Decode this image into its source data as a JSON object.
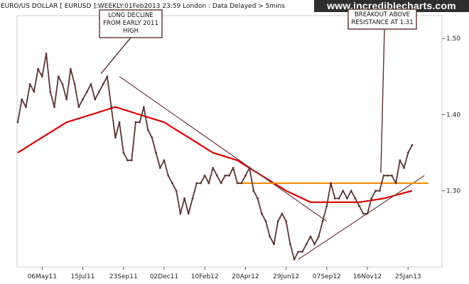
{
  "header": {
    "title": "EURO/US DOLLAR [ EURUSD ]:WEEKLY:01Feb2013 23:59 London : Data Delayed > 5mins",
    "site": "www.incrediblecharts.com"
  },
  "colors": {
    "price": "#5b3330",
    "moving_average": "#dd0000",
    "resistance": "#f08a00",
    "trendline": "#6a3a38",
    "annotation_border": "#5b3330",
    "header_bg": "#2e2e2e",
    "grid": "#e6e6e6"
  },
  "chart_data": {
    "type": "line",
    "title": "EURO/US DOLLAR [ EURUSD ]:WEEKLY:01Feb2013 23:59 London : Data Delayed > 5mins",
    "xlabel": "",
    "ylabel": "",
    "x_range": [
      "2011-03-25",
      "2013-02-01"
    ],
    "ylim": [
      1.2,
      1.53
    ],
    "grid": false,
    "x_ticks": [
      "06May11",
      "15Jul11",
      "23Sep11",
      "02Dec11",
      "10Feb12",
      "20Apr12",
      "29Jun12",
      "07Sep12",
      "16Nov12",
      "25Jan13"
    ],
    "y_ticks": [
      "1.50",
      "1.40",
      "1.30"
    ],
    "series": [
      {
        "role": "price",
        "x": [
          "2011-03-25",
          "2011-04-01",
          "2011-04-08",
          "2011-04-15",
          "2011-04-22",
          "2011-04-29",
          "2011-05-06",
          "2011-05-13",
          "2011-05-20",
          "2011-05-27",
          "2011-06-03",
          "2011-06-10",
          "2011-06-17",
          "2011-06-24",
          "2011-07-01",
          "2011-07-08",
          "2011-07-15",
          "2011-07-22",
          "2011-07-29",
          "2011-08-05",
          "2011-08-12",
          "2011-08-19",
          "2011-08-26",
          "2011-09-02",
          "2011-09-09",
          "2011-09-16",
          "2011-09-23",
          "2011-09-30",
          "2011-10-07",
          "2011-10-14",
          "2011-10-21",
          "2011-10-28",
          "2011-11-04",
          "2011-11-11",
          "2011-11-18",
          "2011-11-25",
          "2011-12-02",
          "2011-12-09",
          "2011-12-16",
          "2011-12-23",
          "2011-12-30",
          "2012-01-06",
          "2012-01-13",
          "2012-01-20",
          "2012-01-27",
          "2012-02-03",
          "2012-02-10",
          "2012-02-17",
          "2012-02-24",
          "2012-03-02",
          "2012-03-09",
          "2012-03-16",
          "2012-03-23",
          "2012-03-30",
          "2012-04-06",
          "2012-04-13",
          "2012-04-20",
          "2012-04-27",
          "2012-05-04",
          "2012-05-11",
          "2012-05-18",
          "2012-05-25",
          "2012-06-01",
          "2012-06-08",
          "2012-06-15",
          "2012-06-22",
          "2012-06-29",
          "2012-07-06",
          "2012-07-13",
          "2012-07-20",
          "2012-07-27",
          "2012-08-03",
          "2012-08-10",
          "2012-08-17",
          "2012-08-24",
          "2012-08-31",
          "2012-09-07",
          "2012-09-14",
          "2012-09-21",
          "2012-09-28",
          "2012-10-05",
          "2012-10-12",
          "2012-10-19",
          "2012-10-26",
          "2012-11-02",
          "2012-11-09",
          "2012-11-16",
          "2012-11-23",
          "2012-11-30",
          "2012-12-07",
          "2012-12-14",
          "2012-12-21",
          "2012-12-28",
          "2013-01-04",
          "2013-01-11",
          "2013-01-18",
          "2013-01-25",
          "2013-02-01"
        ],
        "y": [
          1.39,
          1.42,
          1.41,
          1.44,
          1.43,
          1.46,
          1.45,
          1.48,
          1.43,
          1.41,
          1.45,
          1.44,
          1.42,
          1.46,
          1.44,
          1.41,
          1.42,
          1.43,
          1.44,
          1.42,
          1.43,
          1.44,
          1.45,
          1.41,
          1.37,
          1.39,
          1.35,
          1.34,
          1.34,
          1.39,
          1.39,
          1.41,
          1.38,
          1.37,
          1.35,
          1.33,
          1.34,
          1.32,
          1.31,
          1.3,
          1.27,
          1.29,
          1.27,
          1.29,
          1.31,
          1.31,
          1.32,
          1.31,
          1.33,
          1.32,
          1.31,
          1.32,
          1.32,
          1.33,
          1.31,
          1.31,
          1.32,
          1.33,
          1.3,
          1.29,
          1.27,
          1.26,
          1.24,
          1.23,
          1.26,
          1.27,
          1.26,
          1.23,
          1.21,
          1.22,
          1.22,
          1.23,
          1.24,
          1.23,
          1.24,
          1.26,
          1.28,
          1.31,
          1.29,
          1.29,
          1.3,
          1.29,
          1.3,
          1.29,
          1.28,
          1.27,
          1.27,
          1.29,
          1.3,
          1.3,
          1.32,
          1.32,
          1.32,
          1.31,
          1.34,
          1.33,
          1.35,
          1.36
        ]
      },
      {
        "role": "moving_average",
        "x": [
          "2011-03-25",
          "2011-05-06",
          "2011-06-17",
          "2011-07-29",
          "2011-09-09",
          "2011-10-21",
          "2011-12-02",
          "2012-01-13",
          "2012-02-24",
          "2012-04-06",
          "2012-05-18",
          "2012-06-29",
          "2012-08-10",
          "2012-09-21",
          "2012-11-02",
          "2012-12-14",
          "2013-02-01"
        ],
        "y": [
          1.35,
          1.37,
          1.39,
          1.4,
          1.41,
          1.4,
          1.39,
          1.37,
          1.35,
          1.34,
          1.32,
          1.3,
          1.285,
          1.285,
          1.285,
          1.29,
          1.3
        ]
      }
    ],
    "lines": [
      {
        "type": "trendline",
        "from": {
          "x": "2011-09-16",
          "y": 1.45
        },
        "to": {
          "x": "2012-09-07",
          "y": 1.26
        }
      },
      {
        "type": "trendline",
        "from": {
          "x": "2012-07-20",
          "y": 1.21
        },
        "to": {
          "x": "2013-02-22",
          "y": 1.32
        }
      },
      {
        "type": "resistance",
        "y": 1.31,
        "from": "2012-04-06",
        "to": "2013-03-01"
      }
    ],
    "annotations": [
      {
        "lines": [
          "LONG DECLINE",
          "FROM EARLY 2011",
          "HIGH"
        ],
        "points_to": {
          "x": "2011-09-16",
          "y": 1.45
        }
      },
      {
        "lines": [
          "BREAKOUT ABOVE",
          "RESISTANCE AT 1.31"
        ],
        "points_to": {
          "x": "2012-12-14",
          "y": 1.32
        }
      }
    ]
  }
}
